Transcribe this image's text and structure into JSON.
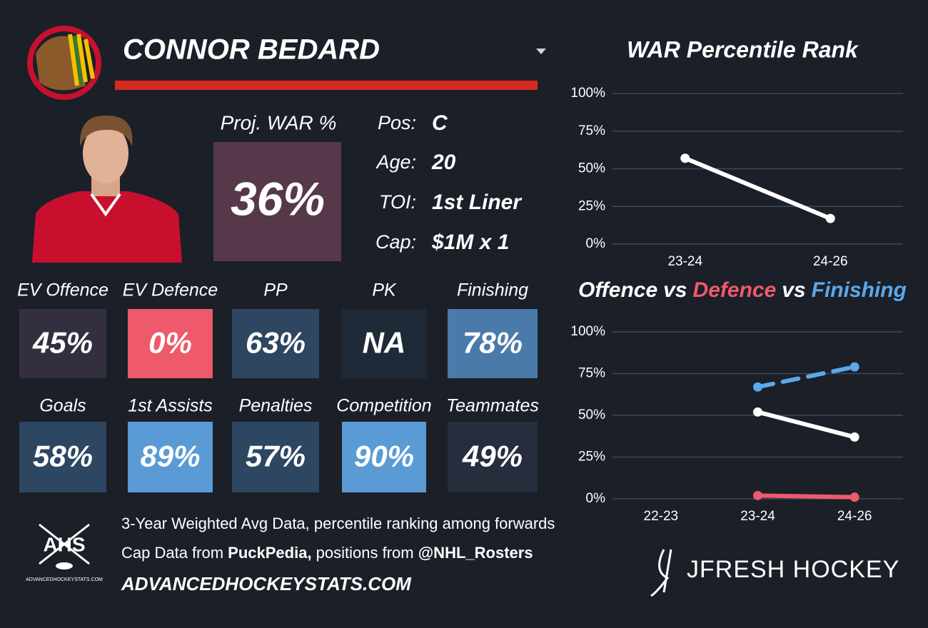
{
  "header": {
    "name": "CONNOR BEDARD"
  },
  "proj_war": {
    "label": "Proj. WAR %",
    "value": "36%",
    "color": "#57384a"
  },
  "bio": [
    {
      "label": "Pos:",
      "value": "C"
    },
    {
      "label": "Age:",
      "value": "20"
    },
    {
      "label": "TOI:",
      "value": "1st Liner"
    },
    {
      "label": "Cap:",
      "value": "$1M x 1"
    }
  ],
  "tiles": [
    {
      "label": "EV Offence",
      "value": "45%",
      "color": "#332f3f"
    },
    {
      "label": "EV Defence",
      "value": "0%",
      "color": "#ee5a6b"
    },
    {
      "label": "PP",
      "value": "63%",
      "color": "#2e4660"
    },
    {
      "label": "PK",
      "value": "NA",
      "color": "#1f2a38"
    },
    {
      "label": "Finishing",
      "value": "78%",
      "color": "#4a7aa9"
    },
    {
      "label": "Goals",
      "value": "58%",
      "color": "#2d4661"
    },
    {
      "label": "1st Assists",
      "value": "89%",
      "color": "#5b9bd5"
    },
    {
      "label": "Penalties",
      "value": "57%",
      "color": "#2d4661"
    },
    {
      "label": "Competition",
      "value": "90%",
      "color": "#5b9bd5"
    },
    {
      "label": "Teammates",
      "value": "49%",
      "color": "#262d3c"
    }
  ],
  "footer": {
    "line1": "3-Year Weighted Avg Data, percentile ranking among forwards",
    "line2": [
      "Cap Data from ",
      "PuckPedia,",
      " positions from ",
      "@NHL_Rosters"
    ],
    "site": "ADVANCEDHOCKEYSTATS.COM",
    "logo_text": "AHS",
    "logo_caption": "ADVANCEDHOCKEYSTATS.COM",
    "brand": "JFRESH HOCKEY"
  },
  "chart_data": [
    {
      "type": "line",
      "title": "WAR Percentile Rank",
      "categories": [
        "23-24",
        "24-26"
      ],
      "series": [
        {
          "color": "#ffffff",
          "values": [
            57,
            17
          ]
        }
      ],
      "ylim": [
        0,
        100
      ],
      "yticks": [
        {
          "value": 0,
          "label": "0%"
        },
        {
          "value": 25,
          "label": "25%"
        },
        {
          "value": 50,
          "label": "50%"
        },
        {
          "value": 75,
          "label": "75%"
        },
        {
          "value": 100,
          "label": "100%"
        }
      ],
      "grid": true
    },
    {
      "type": "line",
      "title_joiner": "vs",
      "categories": [
        "22-23",
        "23-24",
        "24-26"
      ],
      "series": [
        {
          "name": "Offence",
          "color": "#ffffff",
          "values": [
            null,
            52,
            37
          ]
        },
        {
          "name": "Defence",
          "color": "#ee5a6b",
          "values": [
            null,
            2,
            1
          ]
        },
        {
          "name": "Finishing",
          "color": "#5ba8ea",
          "dashed": true,
          "values": [
            null,
            67,
            79
          ]
        }
      ],
      "ylim": [
        0,
        100
      ],
      "yticks": [
        {
          "value": 0,
          "label": "0%"
        },
        {
          "value": 25,
          "label": "25%"
        },
        {
          "value": 50,
          "label": "50%"
        },
        {
          "value": 75,
          "label": "75%"
        },
        {
          "value": 100,
          "label": "100%"
        }
      ],
      "grid": true
    }
  ]
}
